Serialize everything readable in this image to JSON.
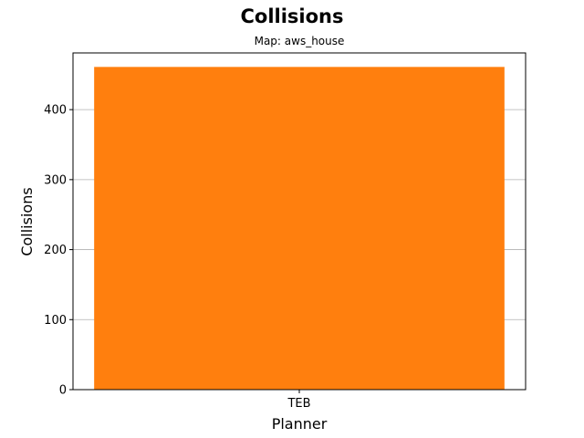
{
  "chart_data": {
    "type": "bar",
    "title": "Collisions",
    "subtitle": "Map: aws_house",
    "xlabel": "Planner",
    "ylabel": "Collisions",
    "categories": [
      "TEB"
    ],
    "series": [
      {
        "values": [
          461
        ],
        "color": "#ff7f0e"
      }
    ],
    "ylim": [
      0,
      481
    ],
    "yticks": [
      0,
      100,
      200,
      300,
      400
    ],
    "grid": "y",
    "legend": "none"
  }
}
